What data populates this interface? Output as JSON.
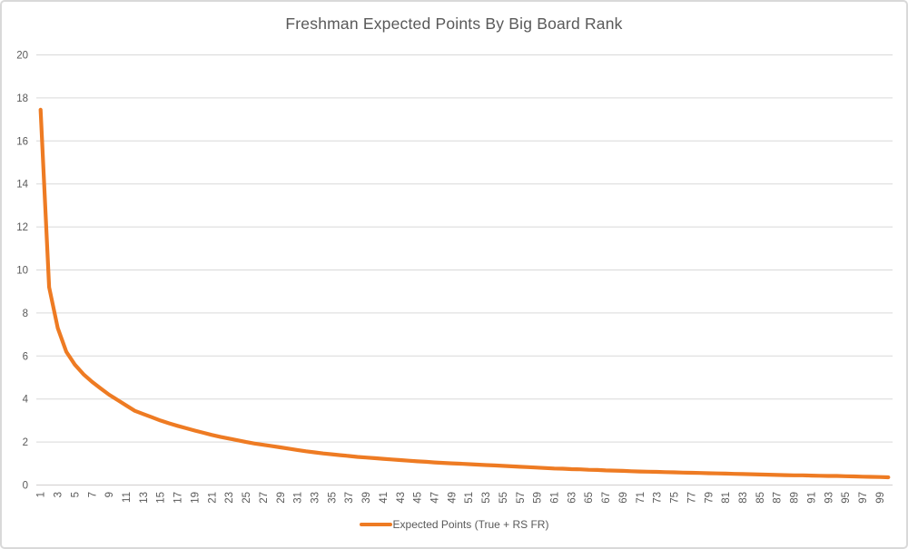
{
  "window": {
    "background": "#ffffff",
    "border_color": "#D9D9D9"
  },
  "chart_data": {
    "type": "line",
    "title": "Freshman Expected Points By Big Board Rank",
    "xlabel": "",
    "ylabel": "",
    "ylim": [
      0,
      20
    ],
    "ytick_step": 2,
    "yticks": [
      0,
      2,
      4,
      6,
      8,
      10,
      12,
      14,
      16,
      18,
      20
    ],
    "xticks": [
      1,
      3,
      5,
      7,
      9,
      11,
      13,
      15,
      17,
      19,
      21,
      23,
      25,
      27,
      29,
      31,
      33,
      35,
      37,
      39,
      41,
      43,
      45,
      47,
      49,
      51,
      53,
      55,
      57,
      59,
      61,
      63,
      65,
      67,
      69,
      71,
      73,
      75,
      77,
      79,
      81,
      83,
      85,
      87,
      89,
      91,
      93,
      95,
      97,
      99
    ],
    "grid": true,
    "legend_position": "bottom",
    "x": [
      1,
      2,
      3,
      4,
      5,
      6,
      7,
      8,
      9,
      10,
      11,
      12,
      13,
      14,
      15,
      16,
      17,
      18,
      19,
      20,
      21,
      22,
      23,
      24,
      25,
      26,
      27,
      28,
      29,
      30,
      31,
      32,
      33,
      34,
      35,
      36,
      37,
      38,
      39,
      40,
      41,
      42,
      43,
      44,
      45,
      46,
      47,
      48,
      49,
      50,
      51,
      52,
      53,
      54,
      55,
      56,
      57,
      58,
      59,
      60,
      61,
      62,
      63,
      64,
      65,
      66,
      67,
      68,
      69,
      70,
      71,
      72,
      73,
      74,
      75,
      76,
      77,
      78,
      79,
      80,
      81,
      82,
      83,
      84,
      85,
      86,
      87,
      88,
      89,
      90,
      91,
      92,
      93,
      94,
      95,
      96,
      97,
      98,
      99,
      100
    ],
    "series": [
      {
        "name": "Expected Points (True + RS FR)",
        "color": "#EE7B23",
        "values": [
          17.45,
          9.2,
          7.3,
          6.2,
          5.6,
          5.15,
          4.8,
          4.5,
          4.2,
          3.95,
          3.7,
          3.45,
          3.3,
          3.15,
          3.0,
          2.87,
          2.75,
          2.64,
          2.53,
          2.43,
          2.33,
          2.24,
          2.16,
          2.08,
          2.0,
          1.93,
          1.87,
          1.81,
          1.75,
          1.69,
          1.63,
          1.57,
          1.52,
          1.47,
          1.43,
          1.39,
          1.35,
          1.31,
          1.28,
          1.25,
          1.22,
          1.19,
          1.16,
          1.13,
          1.1,
          1.08,
          1.05,
          1.03,
          1.01,
          0.99,
          0.97,
          0.95,
          0.93,
          0.91,
          0.89,
          0.87,
          0.85,
          0.83,
          0.81,
          0.79,
          0.77,
          0.76,
          0.74,
          0.73,
          0.71,
          0.7,
          0.68,
          0.67,
          0.66,
          0.64,
          0.63,
          0.62,
          0.61,
          0.6,
          0.59,
          0.58,
          0.57,
          0.56,
          0.55,
          0.54,
          0.53,
          0.52,
          0.51,
          0.5,
          0.49,
          0.48,
          0.47,
          0.46,
          0.45,
          0.45,
          0.44,
          0.43,
          0.42,
          0.42,
          0.41,
          0.4,
          0.39,
          0.38,
          0.37,
          0.36
        ]
      }
    ],
    "colors": {
      "gridline": "#D9D9D9",
      "axis_line": "#D0CECE",
      "tick_text": "#595959",
      "title_text": "#595959"
    }
  },
  "legend": {
    "label": "Expected Points (True + RS FR)"
  }
}
